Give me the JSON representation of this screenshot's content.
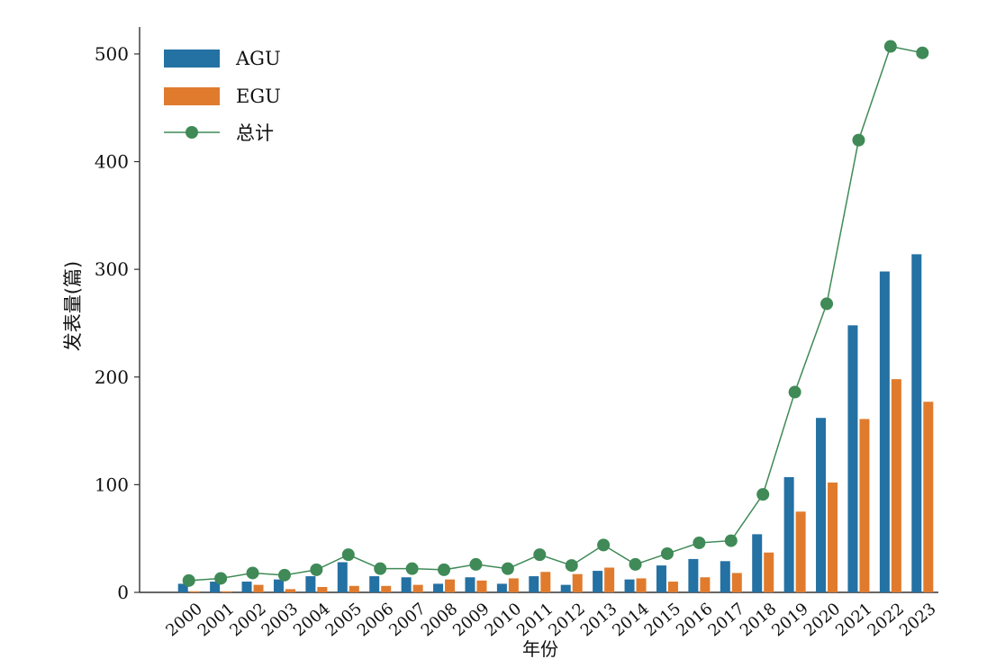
{
  "colors": {
    "agu": "#2471a3",
    "egu": "#e07b2e",
    "total": "#3f8a57",
    "axis": "#333333"
  },
  "chart_data": {
    "type": "bar",
    "title": "",
    "xlabel": "年份",
    "ylabel": "发表量(篇)",
    "ylim": [
      0,
      520
    ],
    "yticks": [
      0,
      100,
      200,
      300,
      400,
      500
    ],
    "grid": false,
    "legend_position": "top-left",
    "categories": [
      "2000",
      "2001",
      "2002",
      "2003",
      "2004",
      "2005",
      "2006",
      "2007",
      "2008",
      "2009",
      "2010",
      "2011",
      "2012",
      "2013",
      "2014",
      "2015",
      "2016",
      "2017",
      "2018",
      "2019",
      "2020",
      "2021",
      "2022",
      "2023"
    ],
    "series": [
      {
        "name": "AGU",
        "type": "bar",
        "color_key": "agu",
        "values": [
          8,
          10,
          10,
          12,
          15,
          28,
          15,
          14,
          8,
          14,
          8,
          15,
          7,
          20,
          12,
          25,
          31,
          29,
          54,
          107,
          162,
          248,
          298,
          314
        ]
      },
      {
        "name": "EGU",
        "type": "bar",
        "color_key": "egu",
        "values": [
          1,
          1,
          7,
          3,
          5,
          6,
          6,
          7,
          12,
          11,
          13,
          19,
          17,
          23,
          13,
          10,
          14,
          18,
          37,
          75,
          102,
          161,
          198,
          177
        ]
      },
      {
        "name": "总计",
        "type": "line",
        "color_key": "total",
        "values": [
          11,
          13,
          18,
          16,
          21,
          35,
          22,
          22,
          21,
          26,
          22,
          35,
          25,
          44,
          26,
          36,
          46,
          48,
          91,
          186,
          268,
          420,
          507,
          501
        ]
      }
    ]
  }
}
